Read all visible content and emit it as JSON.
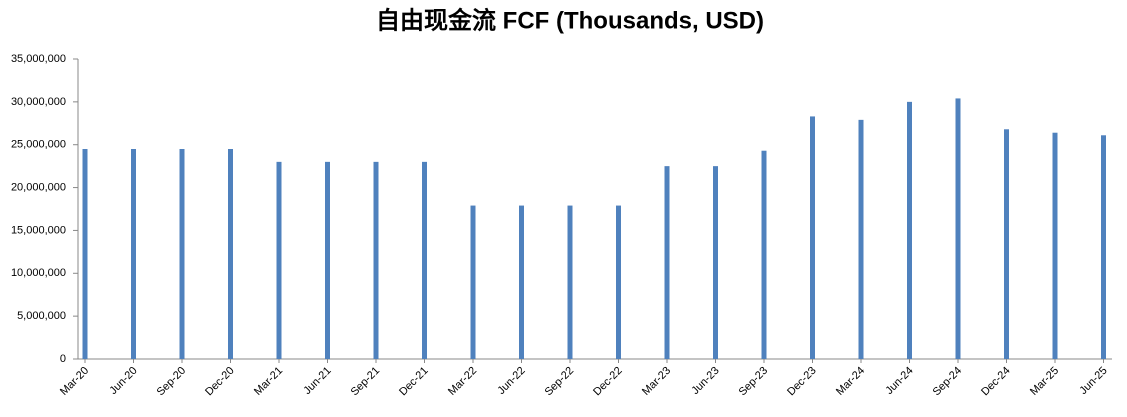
{
  "chart_data": {
    "type": "bar",
    "title": "自由现金流 FCF (Thousands, USD)",
    "categories": [
      "Mar-20",
      "Jun-20",
      "Sep-20",
      "Dec-20",
      "Mar-21",
      "Jun-21",
      "Sep-21",
      "Dec-21",
      "Mar-22",
      "Jun-22",
      "Sep-22",
      "Dec-22",
      "Mar-23",
      "Jun-23",
      "Sep-23",
      "Dec-23",
      "Mar-24",
      "Jun-24",
      "Sep-24",
      "Dec-24",
      "Mar-25",
      "Jun-25"
    ],
    "values": [
      24500000,
      24500000,
      24500000,
      24500000,
      23000000,
      23000000,
      23000000,
      23000000,
      17900000,
      17900000,
      17900000,
      17900000,
      22500000,
      22500000,
      24300000,
      28300000,
      27900000,
      30000000,
      30400000,
      26800000,
      26400000,
      26100000
    ],
    "color": "#4f81bd",
    "ylim": [
      0,
      35000000
    ],
    "yticks": [
      0,
      {
        "value": 5000000,
        "label": "5,000,000"
      },
      {
        "value": 10000000,
        "label": "10,000,000"
      },
      {
        "value": 15000000,
        "label": "15,000,000"
      },
      {
        "value": 20000000,
        "label": "20,000,000"
      },
      {
        "value": 25000000,
        "label": "25,000,000"
      },
      {
        "value": 30000000,
        "label": "30,000,000"
      },
      {
        "value": 35000000,
        "label": "35,000,000"
      }
    ],
    "grid": false
  }
}
